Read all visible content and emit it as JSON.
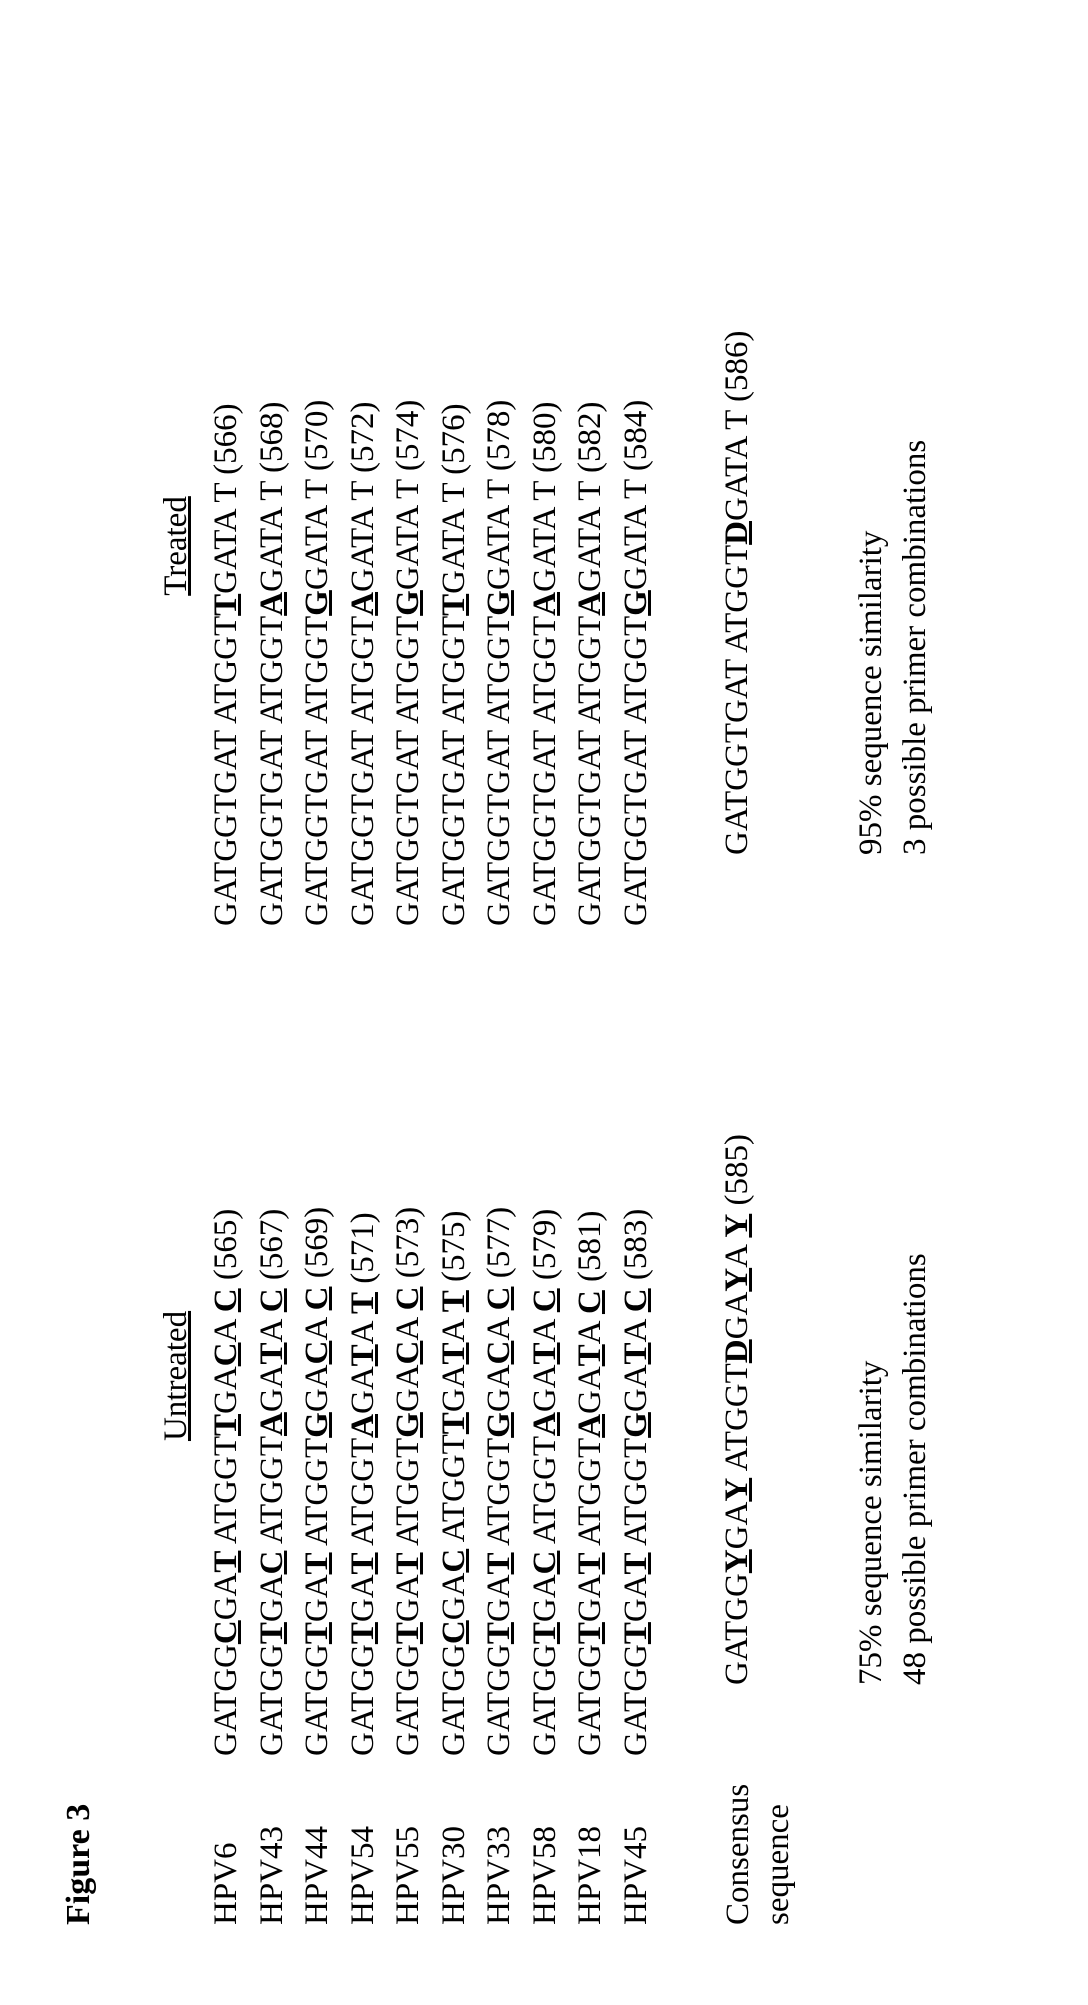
{
  "figure_title": "Figure 3",
  "untreated_header": "Untreated",
  "treated_header": "Treated",
  "rows": [
    {
      "label": "HPV6",
      "untreated_parts": [
        "GATGG",
        "C",
        "GA",
        "T",
        " ATGGT",
        "T",
        "GA",
        "C",
        "A ",
        "C",
        " (565)"
      ],
      "treated_parts": [
        "GATGGTGAT ATGGT",
        "T",
        "GATA T (566)"
      ]
    },
    {
      "label": "HPV43",
      "untreated_parts": [
        "GATGG",
        "T",
        "GA",
        "C",
        " ATGGT",
        "A",
        "GA",
        "T",
        "A ",
        "C",
        " (567)"
      ],
      "treated_parts": [
        "GATGGTGAT ATGGT",
        "A",
        "GATA T (568)"
      ]
    },
    {
      "label": "HPV44",
      "untreated_parts": [
        "GATGG",
        "T",
        "GA",
        "T",
        " ATGGT",
        "G",
        "GA",
        "C",
        "A ",
        "C",
        " (569)"
      ],
      "treated_parts": [
        "GATGGTGAT ATGGT",
        "G",
        "GATA T (570)"
      ]
    },
    {
      "label": "HPV54",
      "untreated_parts": [
        "GATGG",
        "T",
        "GA",
        "T",
        " ATGGT",
        "A",
        "GA",
        "T",
        "A ",
        "T",
        " (571)"
      ],
      "treated_parts": [
        "GATGGTGAT ATGGT",
        "A",
        "GATA T (572)"
      ]
    },
    {
      "label": "HPV55",
      "untreated_parts": [
        "GATGG",
        "T",
        "GA",
        "T",
        " ATGGT",
        "G",
        "GA",
        "C",
        "A ",
        "C",
        " (573)"
      ],
      "treated_parts": [
        "GATGGTGAT ATGGT",
        "G",
        "GATA T (574)"
      ]
    },
    {
      "label": "HPV30",
      "untreated_parts": [
        "GATGG",
        "C",
        "GA",
        "C",
        " ATGGT",
        "T",
        "GA",
        "T",
        "A ",
        "T",
        " (575)"
      ],
      "treated_parts": [
        "GATGGTGAT ATGGT",
        "T",
        "GATA T (576)"
      ]
    },
    {
      "label": "HPV33",
      "untreated_parts": [
        "GATGG",
        "T",
        "GA",
        "T",
        " ATGGT",
        "G",
        "GA",
        "C",
        "A ",
        "C",
        " (577)"
      ],
      "treated_parts": [
        "GATGGTGAT ATGGT",
        "G",
        "GATA T (578)"
      ]
    },
    {
      "label": "HPV58",
      "untreated_parts": [
        "GATGG",
        "T",
        "GA",
        "C",
        " ATGGT",
        "A",
        "GA",
        "T",
        "A ",
        "C",
        " (579)"
      ],
      "treated_parts": [
        "GATGGTGAT ATGGT",
        "A",
        "GATA T (580)"
      ]
    },
    {
      "label": "HPV18",
      "untreated_parts": [
        "GATGG",
        "T",
        "GA",
        "T",
        " ATGGT",
        "A",
        "GA",
        "T",
        "A ",
        "C",
        " (581)"
      ],
      "treated_parts": [
        "GATGGTGAT ATGGT",
        "A",
        "GATA T (582)"
      ]
    },
    {
      "label": "HPV45",
      "untreated_parts": [
        "GATGG",
        "T",
        "GA",
        "T",
        " ATGGT",
        "G",
        "GA",
        "T",
        "A ",
        "C",
        " (583)"
      ],
      "treated_parts": [
        "GATGGTGAT ATGGT",
        "G",
        "GATA T (584)"
      ]
    }
  ],
  "consensus_label_line1": "Consensus",
  "consensus_label_line2": "sequence",
  "consensus_untreated_parts": [
    "GATGG",
    "Y",
    "GA",
    "Y",
    " ATGGT",
    "D",
    "GA",
    "Y",
    "A ",
    "Y",
    " (585)"
  ],
  "consensus_treated_parts": [
    "GATGGTGAT ATGGT",
    "D",
    "GATA T (586)"
  ],
  "untreated_similarity": "75% sequence similarity",
  "untreated_combos": "48 possible primer combinations",
  "treated_similarity": "95% sequence similarity",
  "treated_combos": "3 possible primer combinations",
  "styling": {
    "font_family": "Times New Roman",
    "font_size_pt": 24,
    "background": "#ffffff",
    "text_color": "#000000",
    "underline_positions": "variable nucleotide positions",
    "rotation_deg": -90
  }
}
